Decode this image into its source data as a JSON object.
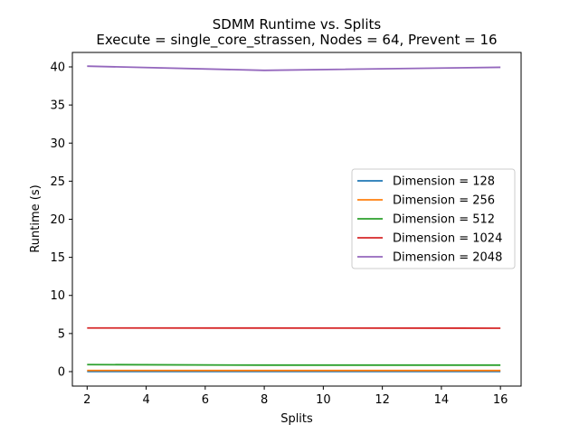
{
  "chart_data": {
    "type": "line",
    "title": "SDMM Runtime vs. Splits",
    "subtitle": "Execute = single_core_strassen, Nodes = 64, Prevent = 16",
    "xlabel": "Splits",
    "ylabel": "Runtime (s)",
    "xlim": [
      1.5,
      16.7
    ],
    "ylim": [
      -1.9,
      41.9
    ],
    "xticks": [
      2,
      4,
      6,
      8,
      10,
      12,
      14,
      16
    ],
    "yticks": [
      0,
      5,
      10,
      15,
      20,
      25,
      30,
      35,
      40
    ],
    "grid": false,
    "legend_position": "center-right",
    "x": [
      2,
      8,
      16
    ],
    "series": [
      {
        "name": "Dimension = 128",
        "color": "#1f77b4",
        "values": [
          0.02,
          0.02,
          0.02
        ]
      },
      {
        "name": "Dimension = 256",
        "color": "#ff7f0e",
        "values": [
          0.15,
          0.14,
          0.14
        ]
      },
      {
        "name": "Dimension = 512",
        "color": "#2ca02c",
        "values": [
          0.92,
          0.85,
          0.85
        ]
      },
      {
        "name": "Dimension = 1024",
        "color": "#d62728",
        "values": [
          5.73,
          5.72,
          5.7
        ]
      },
      {
        "name": "Dimension = 2048",
        "color": "#9467bd",
        "values": [
          40.1,
          39.55,
          39.95
        ]
      }
    ]
  }
}
